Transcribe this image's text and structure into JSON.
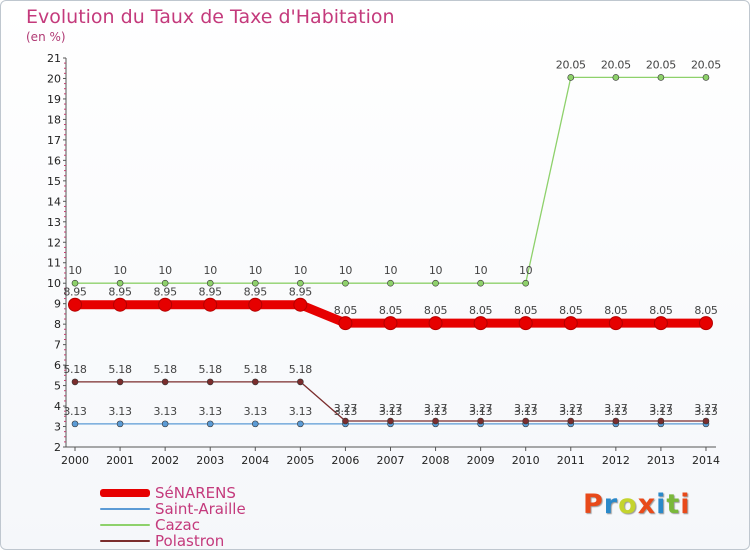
{
  "header": {
    "title": "Evolution du Taux de Taxe d'Habitation",
    "subtitle": "(en %)"
  },
  "logo": {
    "text": "Proxiti",
    "letter_colors": [
      "#e84a1a",
      "#2a89c9",
      "#c4d42e",
      "#e84a1a",
      "#2a89c9",
      "#7ab83a",
      "#e84a1a"
    ]
  },
  "chart_data": {
    "type": "line",
    "title": "Evolution du Taux de Taxe d'Habitation",
    "ylabel": "(en %)",
    "xlabel": "",
    "x": [
      "2000",
      "2001",
      "2002",
      "2003",
      "2004",
      "2005",
      "2006",
      "2007",
      "2008",
      "2009",
      "2010",
      "2011",
      "2012",
      "2013",
      "2014"
    ],
    "ylim": [
      2,
      21
    ],
    "yticks": [
      "2",
      "3",
      "4",
      "5",
      "6",
      "7",
      "8",
      "9",
      "10",
      "11",
      "12",
      "13",
      "14",
      "15",
      "16",
      "17",
      "18",
      "19",
      "20",
      "21"
    ],
    "grid": false,
    "legend_position": "bottom-left",
    "series": [
      {
        "name": "SéNARENS",
        "color": "#e60000",
        "emphasis": true,
        "values": [
          8.95,
          8.95,
          8.95,
          8.95,
          8.95,
          8.95,
          8.05,
          8.05,
          8.05,
          8.05,
          8.05,
          8.05,
          8.05,
          8.05,
          8.05
        ],
        "labels": [
          "8.95",
          "8.95",
          "8.95",
          "8.95",
          "8.95",
          "8.95",
          "8.05",
          "8.05",
          "8.05",
          "8.05",
          "8.05",
          "8.05",
          "8.05",
          "8.05",
          "8.05"
        ]
      },
      {
        "name": "Saint-Araille",
        "color": "#5b9bd5",
        "emphasis": false,
        "values": [
          3.13,
          3.13,
          3.13,
          3.13,
          3.13,
          3.13,
          3.13,
          3.13,
          3.13,
          3.13,
          3.13,
          3.13,
          3.13,
          3.13,
          3.13
        ],
        "labels": [
          "3.13",
          "3.13",
          "3.13",
          "3.13",
          "3.13",
          "3.13",
          "3.13",
          "3.13",
          "3.13",
          "3.13",
          "3.13",
          "3.13",
          "3.13",
          "3.13",
          "3.13"
        ]
      },
      {
        "name": "Cazac",
        "color": "#8ed16b",
        "emphasis": false,
        "values": [
          10,
          10,
          10,
          10,
          10,
          10,
          10,
          10,
          10,
          10,
          10,
          20.05,
          20.05,
          20.05,
          20.05
        ],
        "labels": [
          "10",
          "10",
          "10",
          "10",
          "10",
          "10",
          "10",
          "10",
          "10",
          "10",
          "10",
          "20.05",
          "20.05",
          "20.05",
          "20.05"
        ]
      },
      {
        "name": "Polastron",
        "color": "#7b2d2d",
        "emphasis": false,
        "values": [
          5.18,
          5.18,
          5.18,
          5.18,
          5.18,
          5.18,
          3.27,
          3.27,
          3.27,
          3.27,
          3.27,
          3.27,
          3.27,
          3.27,
          3.27
        ],
        "labels": [
          "5.18",
          "5.18",
          "5.18",
          "5.18",
          "5.18",
          "5.18",
          "3.27",
          "3.27",
          "3.27",
          "3.27",
          "3.27",
          "3.27",
          "3.27",
          "3.27",
          "3.27"
        ]
      }
    ]
  },
  "colors": {
    "title": "#c43a7c",
    "axis": "#555555",
    "tick_label": "#222222",
    "point_label": "#444444"
  }
}
